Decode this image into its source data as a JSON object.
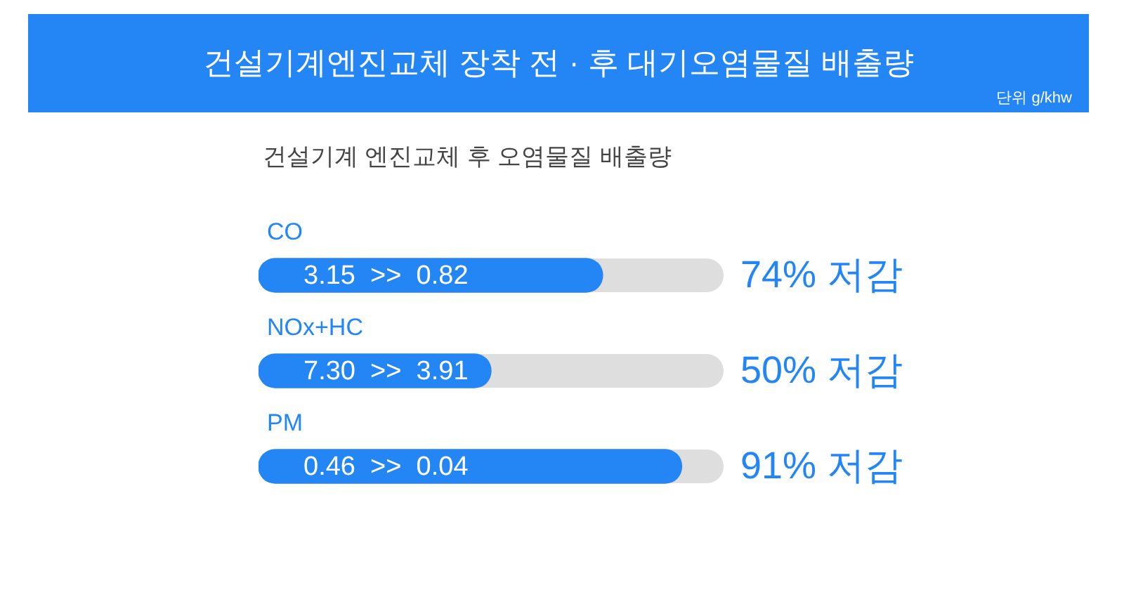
{
  "chart_data": {
    "type": "bar",
    "orientation": "horizontal",
    "title": "건설기계엔진교체 장착 전 · 후  대기오염물질 배출량",
    "subtitle": "건설기계 엔진교체 후 오염물질 배출량",
    "categories": [
      "CO",
      "NOx+HC",
      "PM"
    ],
    "values": [
      74,
      50,
      91
    ],
    "value_labels": [
      "74% 저감",
      "50% 저감",
      "91% 저감"
    ],
    "color": "#2386f4",
    "xlim": [
      0,
      100
    ],
    "tick_labels": false,
    "legend": false,
    "annotations": [
      "단위 g/khw",
      "3.15  >>  0.82",
      "7.30  >>  3.91",
      "0.46  >>  0.04"
    ]
  }
}
